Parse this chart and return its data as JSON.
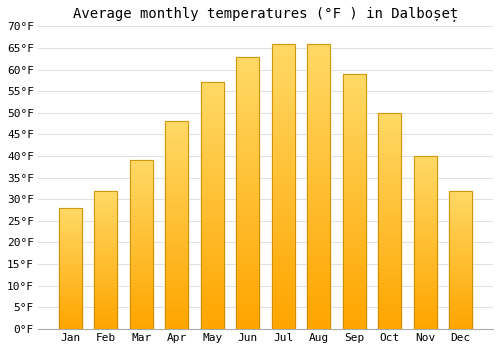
{
  "title": "Average monthly temperatures (°F ) in Dalboșeț",
  "months": [
    "Jan",
    "Feb",
    "Mar",
    "Apr",
    "May",
    "Jun",
    "Jul",
    "Aug",
    "Sep",
    "Oct",
    "Nov",
    "Dec"
  ],
  "values": [
    28,
    32,
    39,
    48,
    57,
    63,
    66,
    66,
    59,
    50,
    40,
    32
  ],
  "bar_color_top": "#FFD966",
  "bar_color_bottom": "#FFA500",
  "bar_edge_color": "#CC8800",
  "background_color": "#FFFFFF",
  "grid_color": "#E0E0E0",
  "ylim": [
    0,
    70
  ],
  "yticks": [
    0,
    5,
    10,
    15,
    20,
    25,
    30,
    35,
    40,
    45,
    50,
    55,
    60,
    65,
    70
  ],
  "ylabel_suffix": "°F",
  "title_fontsize": 10,
  "tick_fontsize": 8,
  "font_family": "monospace"
}
